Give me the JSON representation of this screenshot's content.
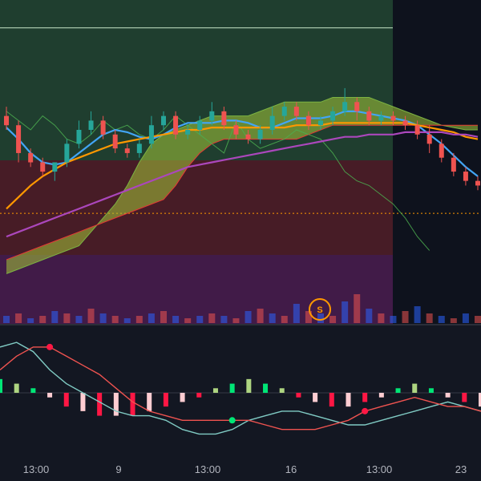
{
  "chart_data": [
    {
      "type": "candlestick",
      "panel": "price",
      "zones": [
        {
          "color": "#2a5e3a",
          "opacity": 0.55
        },
        {
          "color": "#6b1f2a",
          "opacity": 0.6
        },
        {
          "color": "#5b1d5e",
          "opacity": 0.65
        }
      ],
      "candles": {
        "up_color": "#26a69a",
        "down_color": "#ef5350",
        "ohlc": [
          [
            60,
            56,
            64,
            54
          ],
          [
            56,
            44,
            58,
            40
          ],
          [
            44,
            40,
            46,
            38
          ],
          [
            40,
            36,
            42,
            34
          ],
          [
            36,
            40,
            40,
            32
          ],
          [
            40,
            48,
            50,
            38
          ],
          [
            48,
            54,
            58,
            46
          ],
          [
            54,
            58,
            62,
            52
          ],
          [
            58,
            52,
            60,
            50
          ],
          [
            52,
            46,
            54,
            44
          ],
          [
            46,
            44,
            48,
            42
          ],
          [
            44,
            48,
            50,
            42
          ],
          [
            48,
            56,
            60,
            46
          ],
          [
            56,
            60,
            62,
            54
          ],
          [
            60,
            52,
            62,
            50
          ],
          [
            52,
            54,
            56,
            50
          ],
          [
            54,
            58,
            60,
            52
          ],
          [
            58,
            62,
            66,
            56
          ],
          [
            62,
            56,
            64,
            54
          ],
          [
            56,
            52,
            58,
            50
          ],
          [
            52,
            50,
            54,
            48
          ],
          [
            50,
            54,
            56,
            48
          ],
          [
            54,
            60,
            64,
            52
          ],
          [
            60,
            64,
            66,
            58
          ],
          [
            64,
            60,
            66,
            58
          ],
          [
            60,
            56,
            62,
            54
          ],
          [
            56,
            58,
            60,
            54
          ],
          [
            58,
            62,
            64,
            56
          ],
          [
            62,
            66,
            72,
            60
          ],
          [
            66,
            62,
            68,
            58
          ],
          [
            62,
            58,
            64,
            56
          ],
          [
            58,
            60,
            62,
            56
          ],
          [
            60,
            58,
            62,
            56
          ],
          [
            58,
            56,
            60,
            54
          ],
          [
            56,
            52,
            58,
            50
          ],
          [
            52,
            48,
            56,
            44
          ],
          [
            48,
            42,
            50,
            40
          ],
          [
            42,
            36,
            44,
            34
          ],
          [
            36,
            32,
            38,
            30
          ],
          [
            32,
            30,
            34,
            28
          ]
        ]
      },
      "moving_averages": [
        {
          "color": "#42a5f5",
          "values": [
            55,
            50,
            44,
            40,
            39,
            40,
            44,
            48,
            52,
            54,
            53,
            51,
            50,
            52,
            55,
            57,
            57,
            57,
            58,
            58,
            57,
            55,
            55,
            57,
            59,
            59,
            59,
            60,
            62,
            62,
            61,
            60,
            59,
            58,
            56,
            52,
            48,
            43,
            38,
            34
          ]
        },
        {
          "color": "#ff9800",
          "values": [
            20,
            25,
            30,
            34,
            37,
            40,
            42,
            44,
            46,
            48,
            49,
            50,
            51,
            52,
            53,
            54,
            54,
            55,
            55,
            55,
            55,
            55,
            55,
            55,
            56,
            56,
            56,
            57,
            57,
            57,
            57,
            57,
            57,
            57,
            56,
            55,
            54,
            53,
            51,
            50
          ]
        },
        {
          "color": "#ab47bc",
          "values": [
            8,
            10,
            12,
            14,
            16,
            18,
            20,
            22,
            24,
            26,
            28,
            30,
            32,
            34,
            36,
            38,
            39,
            40,
            41,
            42,
            43,
            44,
            45,
            46,
            47,
            48,
            49,
            50,
            51,
            51,
            52,
            52,
            52,
            53,
            53,
            53,
            53,
            52,
            52,
            51
          ]
        }
      ],
      "ichimoku_cloud": {
        "bull_fill": "#a4c639",
        "bear_fill": "#c5a33a",
        "span_a": [
          -8,
          -6,
          -4,
          -2,
          0,
          2,
          4,
          10,
          16,
          22,
          30,
          40,
          48,
          52,
          54,
          56,
          58,
          60,
          60,
          60,
          60,
          62,
          64,
          66,
          66,
          66,
          66,
          68,
          68,
          68,
          68,
          66,
          64,
          62,
          60,
          58,
          56,
          55,
          54,
          54
        ],
        "span_b": [
          -2,
          0,
          2,
          4,
          6,
          8,
          10,
          12,
          14,
          16,
          18,
          20,
          22,
          24,
          30,
          38,
          44,
          48,
          50,
          50,
          50,
          50,
          50,
          50,
          50,
          52,
          54,
          56,
          56,
          56,
          56,
          56,
          56,
          56,
          56,
          56,
          56,
          56,
          56,
          56
        ]
      },
      "lagging_line": {
        "color": "#4caf50",
        "values": [
          62,
          58,
          54,
          60,
          56,
          50,
          48,
          52,
          58,
          54,
          56,
          52,
          50,
          54,
          60,
          56,
          52,
          48,
          44,
          58,
          50,
          46,
          48,
          50,
          54,
          52,
          50,
          44,
          36,
          32,
          30,
          26,
          22,
          16,
          8,
          2
        ]
      },
      "horizontal_lines": [
        {
          "value": 98,
          "color": "#c8e6c9"
        },
        {
          "value": 18,
          "color": "#ff9800",
          "dashed": true
        }
      ],
      "volume": {
        "values": [
          3,
          4,
          2,
          3,
          5,
          4,
          3,
          6,
          4,
          3,
          2,
          3,
          4,
          5,
          3,
          2,
          3,
          4,
          3,
          2,
          5,
          6,
          4,
          3,
          8,
          5,
          4,
          3,
          9,
          12,
          6,
          4,
          3,
          5,
          7,
          4,
          3,
          2,
          4,
          3
        ],
        "colors": [
          "#2962ff",
          "#ef5350"
        ]
      },
      "signal_marker": {
        "label": "S",
        "color": "#ff9800"
      }
    },
    {
      "type": "histogram",
      "panel": "oscillator",
      "macd_line": {
        "color": "#ef5350",
        "values": [
          0.5,
          0.8,
          1.0,
          1.0,
          0.8,
          0.6,
          0.4,
          0.1,
          -0.2,
          -0.4,
          -0.5,
          -0.6,
          -0.6,
          -0.6,
          -0.6,
          -0.6,
          -0.7,
          -0.8,
          -0.8,
          -0.8,
          -0.7,
          -0.6,
          -0.4,
          -0.3,
          -0.2,
          -0.1,
          -0.2,
          -0.3,
          -0.3,
          -0.4
        ]
      },
      "signal_line": {
        "color": "#80cbc4",
        "values": [
          1.0,
          1.1,
          0.9,
          0.5,
          0.2,
          0.0,
          -0.2,
          -0.4,
          -0.5,
          -0.5,
          -0.6,
          -0.8,
          -0.9,
          -0.9,
          -0.8,
          -0.6,
          -0.5,
          -0.4,
          -0.4,
          -0.5,
          -0.6,
          -0.7,
          -0.7,
          -0.6,
          -0.5,
          -0.4,
          -0.3,
          -0.2,
          -0.3,
          -0.4
        ]
      },
      "histogram": {
        "values": [
          0.3,
          0.2,
          0.1,
          -0.1,
          -0.3,
          -0.4,
          -0.5,
          -0.5,
          -0.5,
          -0.4,
          -0.3,
          -0.2,
          -0.1,
          0.1,
          0.2,
          0.3,
          0.2,
          0.1,
          -0.1,
          -0.2,
          -0.3,
          -0.3,
          -0.2,
          -0.1,
          0.1,
          0.2,
          0.1,
          -0.1,
          -0.2,
          -0.3
        ],
        "pos_colors": [
          "#00e676",
          "#aed581"
        ],
        "neg_colors": [
          "#ff1744",
          "#ffcdd2"
        ]
      },
      "crossovers": [
        {
          "index": 3,
          "color": "#ff1744"
        },
        {
          "index": 14,
          "color": "#00e676"
        },
        {
          "index": 22,
          "color": "#ff1744"
        }
      ]
    }
  ],
  "x_axis": {
    "ticks": [
      {
        "label": "13:00"
      },
      {
        "label": "9"
      },
      {
        "label": "13:00"
      },
      {
        "label": "16"
      },
      {
        "label": "13:00"
      },
      {
        "label": "23"
      }
    ]
  }
}
